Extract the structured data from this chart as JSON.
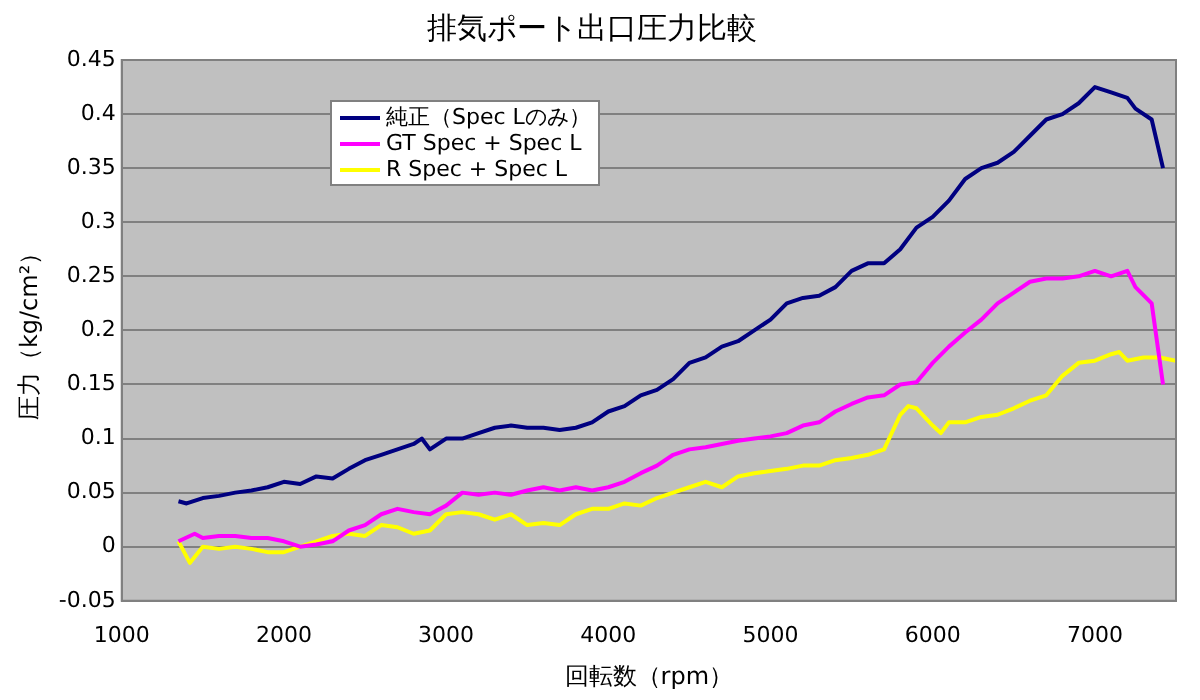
{
  "chart_data": {
    "type": "line",
    "title": "排気ポート出口圧力比較",
    "xlabel": "回転数（rpm）",
    "ylabel": "圧力（kg/cm²）",
    "xlim": [
      1000,
      7500
    ],
    "xticks": [
      1000,
      2000,
      3000,
      4000,
      5000,
      6000,
      7000
    ],
    "ylim": [
      -0.05,
      0.45
    ],
    "yticks": [
      -0.05,
      0,
      0.05,
      0.1,
      0.15,
      0.2,
      0.25,
      0.3,
      0.35,
      0.4,
      0.45
    ],
    "grid": "y",
    "legend": "top left",
    "marker": "none",
    "line_style": "solid",
    "series": [
      {
        "name": "純正（Spec Lのみ）",
        "color": "#000080",
        "x": [
          1350,
          1400,
          1500,
          1600,
          1700,
          1800,
          1900,
          2000,
          2100,
          2200,
          2300,
          2400,
          2500,
          2600,
          2700,
          2800,
          2850,
          2900,
          3000,
          3100,
          3200,
          3300,
          3400,
          3500,
          3600,
          3700,
          3800,
          3900,
          4000,
          4100,
          4200,
          4300,
          4400,
          4500,
          4600,
          4700,
          4800,
          4900,
          5000,
          5100,
          5200,
          5300,
          5400,
          5500,
          5600,
          5700,
          5800,
          5900,
          6000,
          6100,
          6200,
          6300,
          6400,
          6500,
          6600,
          6700,
          6800,
          6900,
          7000,
          7100,
          7200,
          7250,
          7350,
          7420
        ],
        "values": [
          0.042,
          0.04,
          0.045,
          0.047,
          0.05,
          0.052,
          0.055,
          0.06,
          0.058,
          0.065,
          0.063,
          0.072,
          0.08,
          0.085,
          0.09,
          0.095,
          0.1,
          0.09,
          0.1,
          0.1,
          0.105,
          0.11,
          0.112,
          0.11,
          0.11,
          0.108,
          0.11,
          0.115,
          0.125,
          0.13,
          0.14,
          0.145,
          0.155,
          0.17,
          0.175,
          0.185,
          0.19,
          0.2,
          0.21,
          0.225,
          0.23,
          0.232,
          0.24,
          0.255,
          0.262,
          0.262,
          0.275,
          0.295,
          0.305,
          0.32,
          0.34,
          0.35,
          0.355,
          0.365,
          0.38,
          0.395,
          0.4,
          0.41,
          0.425,
          0.42,
          0.415,
          0.405,
          0.395,
          0.35
        ]
      },
      {
        "name": "GT Spec + Spec L",
        "color": "#ff00ff",
        "x": [
          1350,
          1450,
          1500,
          1600,
          1700,
          1800,
          1900,
          2000,
          2100,
          2200,
          2300,
          2400,
          2500,
          2600,
          2700,
          2800,
          2900,
          3000,
          3100,
          3200,
          3300,
          3400,
          3500,
          3600,
          3700,
          3800,
          3900,
          4000,
          4100,
          4200,
          4300,
          4400,
          4500,
          4600,
          4700,
          4800,
          4900,
          5000,
          5100,
          5200,
          5300,
          5400,
          5500,
          5600,
          5700,
          5800,
          5900,
          6000,
          6100,
          6200,
          6300,
          6400,
          6500,
          6600,
          6700,
          6800,
          6900,
          7000,
          7100,
          7200,
          7250,
          7350,
          7420
        ],
        "values": [
          0.005,
          0.012,
          0.008,
          0.01,
          0.01,
          0.008,
          0.008,
          0.005,
          0,
          0.002,
          0.005,
          0.015,
          0.02,
          0.03,
          0.035,
          0.032,
          0.03,
          0.038,
          0.05,
          0.048,
          0.05,
          0.048,
          0.052,
          0.055,
          0.052,
          0.055,
          0.052,
          0.055,
          0.06,
          0.068,
          0.075,
          0.085,
          0.09,
          0.092,
          0.095,
          0.098,
          0.1,
          0.102,
          0.105,
          0.112,
          0.115,
          0.125,
          0.132,
          0.138,
          0.14,
          0.15,
          0.152,
          0.17,
          0.185,
          0.198,
          0.21,
          0.225,
          0.235,
          0.245,
          0.248,
          0.248,
          0.25,
          0.255,
          0.25,
          0.255,
          0.24,
          0.225,
          0.15
        ]
      },
      {
        "name": "R Spec + Spec L",
        "color": "#ffff00",
        "x": [
          1350,
          1420,
          1500,
          1600,
          1700,
          1800,
          1900,
          2000,
          2100,
          2200,
          2300,
          2400,
          2500,
          2600,
          2700,
          2800,
          2900,
          3000,
          3100,
          3200,
          3300,
          3400,
          3500,
          3600,
          3700,
          3800,
          3900,
          4000,
          4100,
          4200,
          4300,
          4400,
          4500,
          4600,
          4700,
          4800,
          4900,
          5000,
          5100,
          5200,
          5300,
          5400,
          5500,
          5600,
          5700,
          5800,
          5850,
          5900,
          6000,
          6050,
          6100,
          6200,
          6300,
          6400,
          6500,
          6600,
          6700,
          6800,
          6900,
          7000,
          7100,
          7150,
          7200,
          7300,
          7400,
          7500
        ],
        "values": [
          0.005,
          -0.015,
          0,
          -0.002,
          0,
          -0.002,
          -0.005,
          -0.005,
          0,
          0.005,
          0.01,
          0.012,
          0.01,
          0.02,
          0.018,
          0.012,
          0.015,
          0.03,
          0.032,
          0.03,
          0.025,
          0.03,
          0.02,
          0.022,
          0.02,
          0.03,
          0.035,
          0.035,
          0.04,
          0.038,
          0.045,
          0.05,
          0.055,
          0.06,
          0.055,
          0.065,
          0.068,
          0.07,
          0.072,
          0.075,
          0.075,
          0.08,
          0.082,
          0.085,
          0.09,
          0.122,
          0.13,
          0.128,
          0.112,
          0.105,
          0.115,
          0.115,
          0.12,
          0.122,
          0.128,
          0.135,
          0.14,
          0.158,
          0.17,
          0.172,
          0.178,
          0.18,
          0.172,
          0.175,
          0.175,
          0.172
        ]
      }
    ]
  }
}
